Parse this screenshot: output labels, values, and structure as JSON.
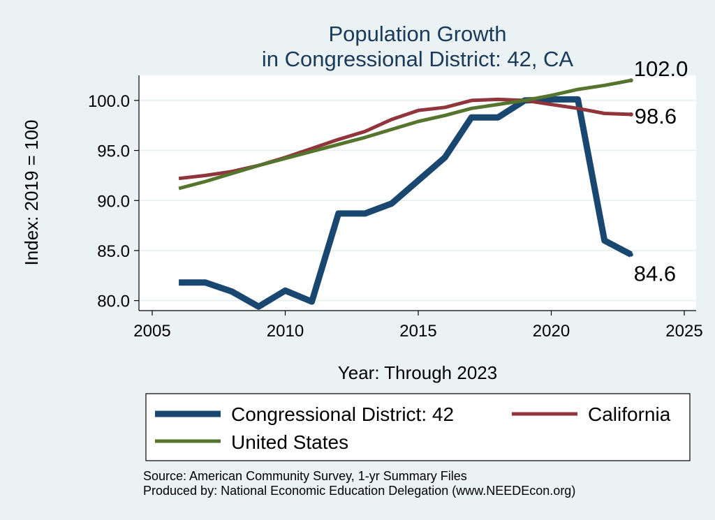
{
  "chart_data": {
    "type": "line",
    "title": [
      "Population Growth",
      "in Congressional District: 42, CA"
    ],
    "xlabel": "Year: Through 2023",
    "ylabel": "Index: 2019 = 100",
    "xlim": [
      2005,
      2025
    ],
    "ylim": [
      79,
      102.5
    ],
    "xticks": [
      2005,
      2010,
      2015,
      2020,
      2025
    ],
    "yticks": [
      80,
      85,
      90,
      95,
      100
    ],
    "ytick_labels": [
      "80.0",
      "85.0",
      "90.0",
      "95.0",
      "100.0"
    ],
    "grid": true,
    "legend_position": "bottom",
    "x": [
      2006,
      2007,
      2008,
      2009,
      2010,
      2011,
      2012,
      2013,
      2014,
      2015,
      2016,
      2017,
      2018,
      2019,
      2020,
      2021,
      2022,
      2023
    ],
    "series": [
      {
        "name": "Congressional District: 42",
        "color": "#1a476f",
        "values": [
          81.8,
          81.8,
          80.9,
          79.4,
          81.0,
          79.9,
          88.7,
          88.7,
          89.7,
          92.0,
          94.3,
          98.3,
          98.3,
          100.0,
          100.1,
          100.1,
          86.0,
          84.6
        ],
        "end_label": "84.6"
      },
      {
        "name": "California",
        "color": "#90353b",
        "values": [
          92.2,
          92.5,
          92.9,
          93.5,
          94.3,
          95.2,
          96.1,
          96.9,
          98.1,
          99.0,
          99.3,
          100.0,
          100.1,
          100.0,
          99.6,
          99.2,
          98.7,
          98.6
        ],
        "end_label": "98.6"
      },
      {
        "name": "United States",
        "color": "#55752f",
        "values": [
          91.2,
          91.9,
          92.7,
          93.5,
          94.2,
          94.9,
          95.6,
          96.3,
          97.1,
          97.9,
          98.5,
          99.2,
          99.6,
          100.0,
          100.5,
          101.1,
          101.5,
          102.0
        ],
        "end_label": "102.0"
      }
    ],
    "source_lines": [
      "Source: American Community Survey, 1-yr Summary Files",
      "Produced by: National Economic Education Delegation (www.NEEDEcon.org)"
    ]
  }
}
